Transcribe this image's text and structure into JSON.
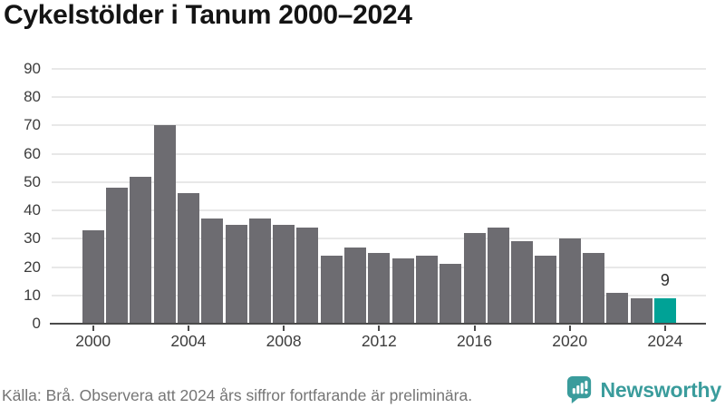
{
  "title": "Cykelstölder i Tanum 2000–2024",
  "chart_data": {
    "type": "bar",
    "title": "Cykelstölder i Tanum 2000–2024",
    "categories": [
      "2000",
      "2001",
      "2002",
      "2003",
      "2004",
      "2005",
      "2006",
      "2007",
      "2008",
      "2009",
      "2010",
      "2011",
      "2012",
      "2013",
      "2014",
      "2015",
      "2016",
      "2017",
      "2018",
      "2019",
      "2020",
      "2021",
      "2022",
      "2023",
      "2024"
    ],
    "values": [
      33,
      48,
      52,
      70,
      46,
      37,
      35,
      37,
      35,
      34,
      24,
      27,
      25,
      23,
      24,
      21,
      32,
      34,
      29,
      24,
      30,
      25,
      11,
      9,
      9
    ],
    "ylim": [
      0,
      90
    ],
    "y_ticks": [
      0,
      10,
      20,
      30,
      40,
      50,
      60,
      70,
      80,
      90
    ],
    "x_tick_labels": [
      "2000",
      "2004",
      "2008",
      "2012",
      "2016",
      "2020",
      "2024"
    ],
    "grid": "horizontal",
    "legend_position": "none",
    "bar_color_default": "#6d6c71",
    "bar_color_highlight": "#00a296",
    "highlight_index": 24,
    "annotations": [
      {
        "index": 24,
        "text": "9"
      }
    ]
  },
  "footer": {
    "source": "Källa: Brå. Observera att 2024 års siffror fortfarande är preliminära."
  },
  "branding": {
    "name": "Newsworthy",
    "icon": "bar-chart-speech-bubble-icon",
    "color": "#3a9c9c"
  }
}
